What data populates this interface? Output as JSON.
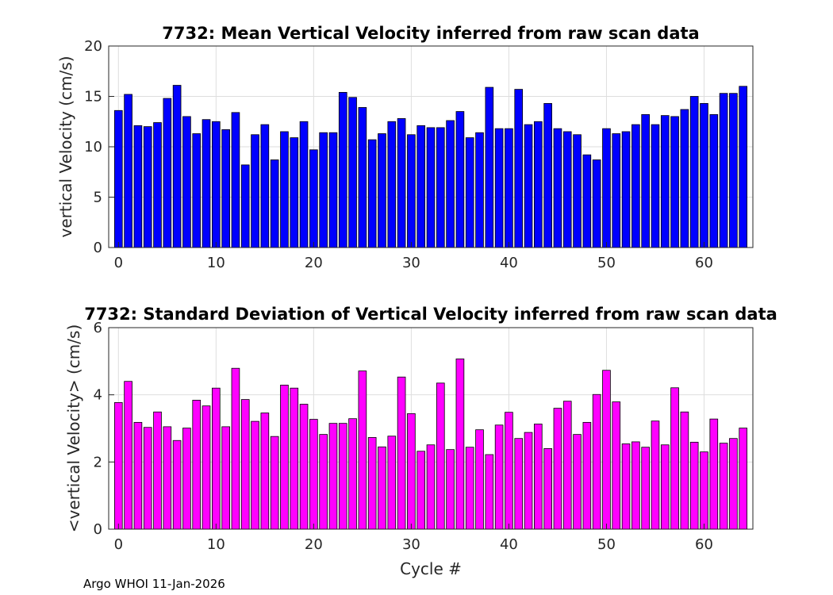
{
  "footer": "Argo WHOI 11-Jan-2026",
  "chart_data": [
    {
      "type": "bar",
      "title": "7732: Mean Vertical Velocity inferred from raw scan data",
      "xlabel": "",
      "ylabel": "vertical Velocity (cm/s)",
      "xlim": [
        -1,
        65
      ],
      "ylim": [
        0,
        20
      ],
      "xticks": [
        "0",
        "10",
        "20",
        "30",
        "40",
        "50",
        "60"
      ],
      "yticks": [
        "0",
        "5",
        "10",
        "15",
        "20"
      ],
      "grid": true,
      "color": "#0000ff",
      "x": [
        0,
        1,
        2,
        3,
        4,
        5,
        6,
        7,
        8,
        9,
        10,
        11,
        12,
        13,
        14,
        15,
        16,
        17,
        18,
        19,
        20,
        21,
        22,
        23,
        24,
        25,
        26,
        27,
        28,
        29,
        30,
        31,
        32,
        33,
        34,
        35,
        36,
        37,
        38,
        39,
        40,
        41,
        42,
        43,
        44,
        45,
        46,
        47,
        48,
        49,
        50,
        51,
        52,
        53,
        54,
        55,
        56,
        57,
        58,
        59,
        60,
        61,
        62,
        63,
        64
      ],
      "values": [
        13.6,
        15.2,
        12.1,
        12.0,
        12.4,
        14.8,
        16.1,
        13.0,
        11.3,
        12.7,
        12.5,
        11.7,
        13.4,
        8.2,
        11.2,
        12.2,
        8.7,
        11.5,
        10.9,
        12.5,
        9.7,
        11.4,
        11.4,
        15.4,
        14.9,
        13.9,
        10.7,
        11.3,
        12.5,
        12.8,
        11.2,
        12.1,
        11.9,
        11.9,
        12.6,
        13.5,
        10.9,
        11.4,
        15.9,
        11.8,
        11.8,
        15.7,
        12.2,
        12.5,
        14.3,
        11.8,
        11.5,
        11.2,
        9.2,
        8.7,
        11.8,
        11.3,
        11.5,
        12.2,
        13.2,
        12.2,
        13.1,
        13.0,
        13.7,
        15.0,
        14.3,
        13.2,
        15.3,
        15.3,
        16.0
      ]
    },
    {
      "type": "bar",
      "title": "7732: Standard Deviation of Vertical Velocity inferred from raw scan data",
      "xlabel": "Cycle #",
      "ylabel": "<vertical Velocity> (cm/s)",
      "xlim": [
        -1,
        65
      ],
      "ylim": [
        0,
        6
      ],
      "xticks": [
        "0",
        "10",
        "20",
        "30",
        "40",
        "50",
        "60"
      ],
      "yticks": [
        "0",
        "2",
        "4",
        "6"
      ],
      "grid": true,
      "color": "#ff00ff",
      "x": [
        0,
        1,
        2,
        3,
        4,
        5,
        6,
        7,
        8,
        9,
        10,
        11,
        12,
        13,
        14,
        15,
        16,
        17,
        18,
        19,
        20,
        21,
        22,
        23,
        24,
        25,
        26,
        27,
        28,
        29,
        30,
        31,
        32,
        33,
        34,
        35,
        36,
        37,
        38,
        39,
        40,
        41,
        42,
        43,
        44,
        45,
        46,
        47,
        48,
        49,
        50,
        51,
        52,
        53,
        54,
        55,
        56,
        57,
        58,
        59,
        60,
        61,
        62,
        63,
        64
      ],
      "values": [
        3.77,
        4.4,
        3.18,
        3.03,
        3.49,
        3.05,
        2.64,
        3.01,
        3.84,
        3.67,
        4.2,
        3.05,
        4.79,
        3.86,
        3.21,
        3.46,
        2.76,
        4.29,
        4.2,
        3.72,
        3.27,
        2.82,
        3.15,
        3.15,
        3.29,
        4.71,
        2.73,
        2.45,
        2.77,
        4.53,
        3.44,
        2.32,
        2.51,
        4.35,
        2.37,
        5.07,
        2.44,
        2.96,
        2.22,
        3.1,
        3.48,
        2.7,
        2.88,
        3.13,
        2.4,
        3.6,
        3.81,
        2.82,
        3.18,
        4.01,
        4.73,
        3.79,
        2.54,
        2.6,
        2.44,
        3.22,
        2.51,
        4.21,
        3.49,
        2.59,
        2.3,
        3.28,
        2.56,
        2.7,
        3.01
      ]
    }
  ]
}
